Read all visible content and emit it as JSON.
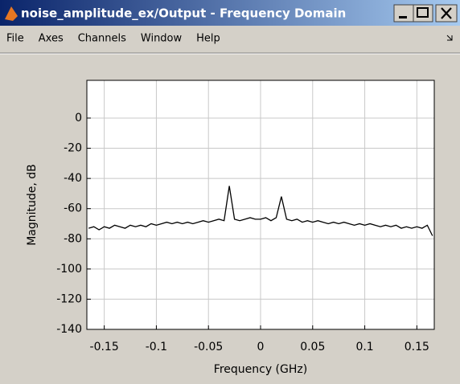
{
  "window": {
    "title": "noise_amplitude_ex/Output - Frequency Domain"
  },
  "menu": [
    "File",
    "Axes",
    "Channels",
    "Window",
    "Help"
  ],
  "chart_data": {
    "type": "line",
    "xlabel": "Frequency (GHz)",
    "ylabel": "Magnitude, dB",
    "x": [
      -0.165,
      -0.16,
      -0.155,
      -0.15,
      -0.145,
      -0.14,
      -0.135,
      -0.13,
      -0.125,
      -0.12,
      -0.115,
      -0.11,
      -0.105,
      -0.1,
      -0.095,
      -0.09,
      -0.085,
      -0.08,
      -0.075,
      -0.07,
      -0.065,
      -0.06,
      -0.055,
      -0.05,
      -0.045,
      -0.04,
      -0.035,
      -0.03,
      -0.025,
      -0.02,
      -0.015,
      -0.01,
      -0.005,
      0,
      0.005,
      0.01,
      0.015,
      0.02,
      0.025,
      0.03,
      0.035,
      0.04,
      0.045,
      0.05,
      0.055,
      0.06,
      0.065,
      0.07,
      0.075,
      0.08,
      0.085,
      0.09,
      0.095,
      0.1,
      0.105,
      0.11,
      0.115,
      0.12,
      0.125,
      0.13,
      0.135,
      0.14,
      0.145,
      0.15,
      0.155,
      0.16,
      0.165
    ],
    "series": [
      {
        "color": "#000000",
        "values": [
          -73,
          -72,
          -74,
          -72,
          -73,
          -71,
          -72,
          -73,
          -71,
          -72,
          -71,
          -72,
          -70,
          -71,
          -70,
          -69,
          -70,
          -69,
          -70,
          -69,
          -70,
          -69,
          -68,
          -69,
          -68,
          -67,
          -68,
          -45,
          -67,
          -68,
          -67,
          -66,
          -67,
          -67,
          -66,
          -68,
          -66,
          -52,
          -67,
          -68,
          -67,
          -69,
          -68,
          -69,
          -68,
          -69,
          -70,
          -69,
          -70,
          -69,
          -70,
          -71,
          -70,
          -71,
          -70,
          -71,
          -72,
          -71,
          -72,
          -71,
          -73,
          -72,
          -73,
          -72,
          -73,
          -71,
          -78
        ]
      }
    ],
    "xlim": [
      -0.1667,
      0.1667
    ],
    "xticks": [
      -0.15,
      -0.1,
      -0.05,
      0,
      0.05,
      0.1,
      0.15
    ],
    "ylim": [
      -140,
      25
    ],
    "yticks": [
      -140,
      -120,
      -100,
      -80,
      -60,
      -40,
      -20,
      0
    ],
    "grid": true
  }
}
